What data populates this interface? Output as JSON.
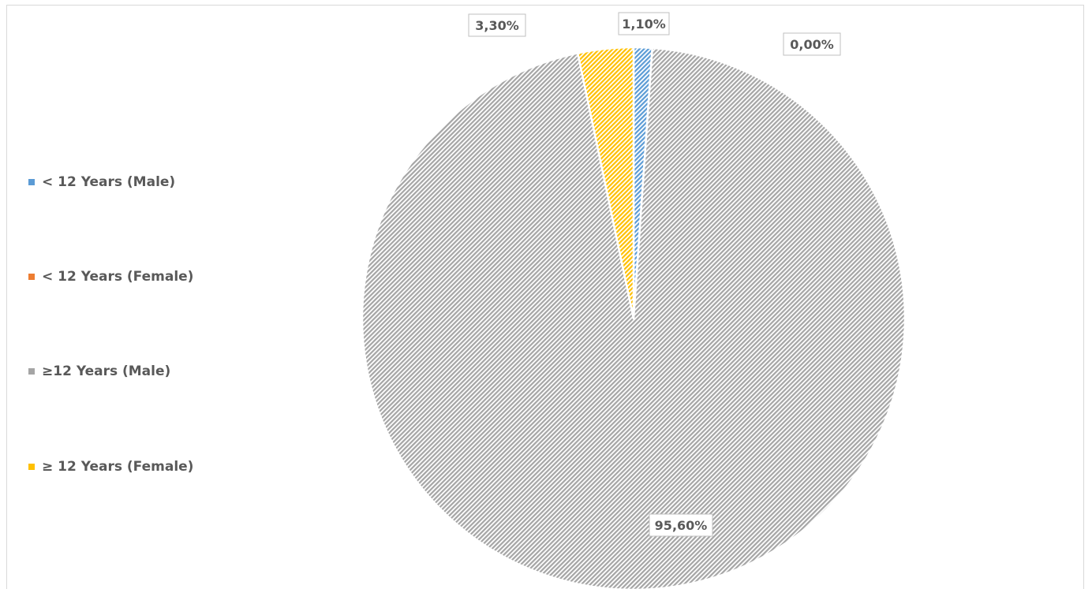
{
  "chart_data": {
    "type": "pie",
    "title": "",
    "legend_position": "left",
    "slices": [
      {
        "name": "< 12 Years (Male)",
        "value": 1.1,
        "label": "1,10%",
        "color": "#5b9bd5",
        "pattern": "hatched"
      },
      {
        "name": "< 12 Years (Female)",
        "value": 0.0,
        "label": "0,00%",
        "color": "#ed7d31",
        "pattern": "hatched"
      },
      {
        "name": "≥12 Years (Male)",
        "value": 95.6,
        "label": "95,60%",
        "color": "#a5a5a5",
        "pattern": "hatched"
      },
      {
        "name": "≥ 12 Years (Female)",
        "value": 3.3,
        "label": "3,30%",
        "color": "#ffc000",
        "pattern": "hatched"
      }
    ]
  }
}
